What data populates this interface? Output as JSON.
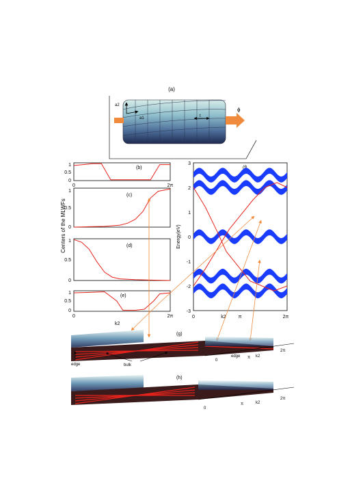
{
  "panel_labels": {
    "a": "(a)",
    "b": "(b)",
    "c": "(c)",
    "d": "(d)",
    "e": "(e)",
    "f": "(f)",
    "g": "(g)",
    "h": "(h)"
  },
  "cylinder": {
    "a2_label": "a2",
    "a1_label": "a1",
    "t_label": "t",
    "phi_label": "ϕ"
  },
  "wannier_panels": {
    "ylabel": "Centers of the MLWFs",
    "x_start": "0",
    "x_end": "2π",
    "b_ticks": [
      "1",
      "0.5",
      "0"
    ],
    "c_ticks": [
      "1",
      "0.5",
      "0"
    ],
    "d_ticks": [
      "1",
      "0.5",
      "0"
    ],
    "e_ticks": [
      "1",
      "0.5",
      "0"
    ]
  },
  "energy_panel": {
    "ylabel": "Energy(eV)",
    "y_ticks": [
      "3",
      "2",
      "1",
      "0",
      "-1",
      "-2",
      "-3"
    ],
    "x_ticks": [
      "0",
      "k2",
      "π",
      "2π"
    ]
  },
  "surface_g": {
    "k2_label": "k2",
    "edge_left": "edge",
    "bulk": "bulk",
    "edge_right": "edge",
    "x0": "0",
    "xpi": "π",
    "xk2": "k2",
    "x2pi": "2π"
  },
  "surface_h": {
    "x0": "0",
    "xpi": "π",
    "xk2": "k2",
    "x2pi": "2π"
  },
  "colors": {
    "curve": "#e8231c",
    "band": "#1a3cff",
    "arrow": "#f08a3c",
    "cyl_light": "#cfe7e4",
    "cyl_dark": "#223055"
  },
  "chart_data": [
    {
      "type": "line",
      "panel": "b",
      "x_range": [
        0,
        6.283
      ],
      "ylim": [
        0,
        1
      ],
      "series": [
        {
          "x": [
            0,
            0.6,
            1.2,
            1.8,
            2.1,
            2.4,
            3.0,
            4.0,
            5.0,
            5.6,
            6.283
          ],
          "values": [
            0.85,
            0.9,
            0.95,
            0.95,
            0.5,
            0.05,
            0.05,
            0.05,
            0.05,
            0.9,
            0.9
          ]
        }
      ]
    },
    {
      "type": "line",
      "panel": "c",
      "x_range": [
        0,
        6.283
      ],
      "ylim": [
        0,
        1
      ],
      "series": [
        {
          "x": [
            0,
            1,
            2,
            3,
            3.5,
            4,
            4.5,
            5,
            5.5,
            6.283
          ],
          "values": [
            0.0,
            0.01,
            0.02,
            0.05,
            0.1,
            0.2,
            0.4,
            0.75,
            0.92,
            0.98
          ]
        }
      ]
    },
    {
      "type": "line",
      "panel": "d",
      "x_range": [
        0,
        6.283
      ],
      "ylim": [
        0,
        1
      ],
      "series": [
        {
          "x": [
            0,
            0.5,
            1,
            1.5,
            2,
            2.5,
            3,
            4,
            5,
            6.283
          ],
          "values": [
            0.98,
            0.92,
            0.75,
            0.45,
            0.2,
            0.08,
            0.04,
            0.02,
            0.01,
            0.0
          ]
        }
      ]
    },
    {
      "type": "line",
      "panel": "e",
      "x_range": [
        0,
        6.283
      ],
      "ylim": [
        0,
        1
      ],
      "series": [
        {
          "x": [
            0,
            1,
            2,
            2.8,
            3.2,
            4,
            4.6,
            5.2,
            5.6,
            6.283
          ],
          "values": [
            0.9,
            0.92,
            0.95,
            0.5,
            0.05,
            0.05,
            0.1,
            0.5,
            0.85,
            0.9
          ]
        }
      ]
    },
    {
      "type": "line",
      "panel": "f",
      "x_range": [
        0,
        6.283
      ],
      "ylim": [
        -3,
        3
      ],
      "series": [
        {
          "x": [
            0,
            0.8,
            1.6,
            2.2,
            3.0,
            3.8,
            4.6,
            5.4,
            6.283
          ],
          "values": [
            2.0,
            1.2,
            0.2,
            -0.6,
            -1.2,
            -1.8,
            -2.0,
            -2.2,
            -2.0
          ]
        },
        {
          "x": [
            0,
            0.8,
            1.6,
            2.4,
            3.2,
            4.0,
            4.8,
            5.6,
            6.283
          ],
          "values": [
            -2.0,
            -1.3,
            -0.5,
            0.3,
            0.9,
            1.5,
            2.0,
            2.2,
            2.0
          ]
        }
      ]
    }
  ]
}
